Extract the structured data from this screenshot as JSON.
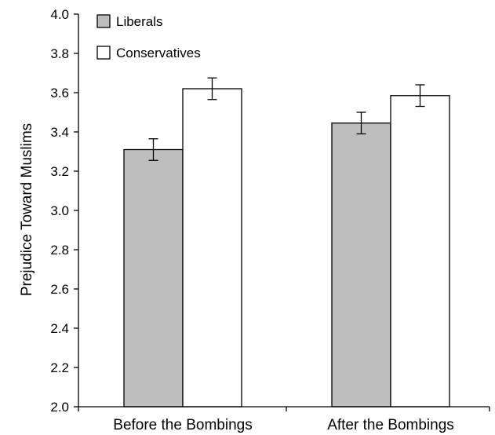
{
  "chart_data": {
    "type": "bar",
    "categories": [
      "Before the Bombings",
      "After the Bombings"
    ],
    "series": [
      {
        "name": "Liberals",
        "values": [
          3.31,
          3.445
        ],
        "error": [
          0.055,
          0.055
        ],
        "color": "#bebebe"
      },
      {
        "name": "Conservatives",
        "values": [
          3.62,
          3.585
        ],
        "error": [
          0.055,
          0.055
        ],
        "color": "#ffffff"
      }
    ],
    "yticks": [
      "2.0",
      "2.2",
      "2.4",
      "2.6",
      "2.8",
      "3.0",
      "3.2",
      "3.4",
      "3.6",
      "3.8",
      "4.0"
    ],
    "title": "",
    "xlabel": "",
    "ylabel": "Prejudice Toward Muslims",
    "ylim": [
      2.0,
      4.0
    ],
    "grid": false,
    "legend_position": "top-left"
  }
}
